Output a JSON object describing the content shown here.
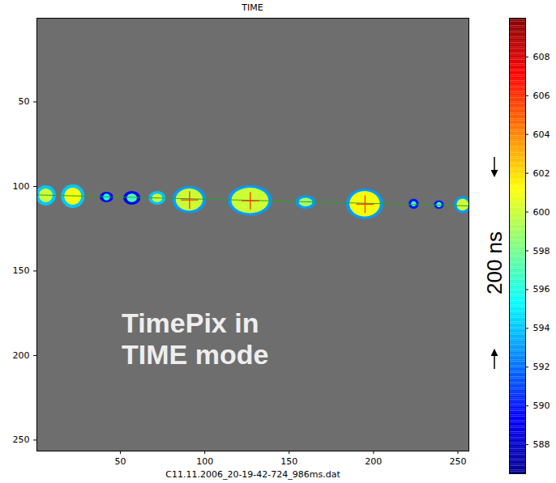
{
  "chart_data": {
    "type": "heatmap",
    "title": "TIME",
    "xlabel": "C11.11.2006_20-19-42-724_986ms.dat",
    "xlim": [
      0.5,
      256.5
    ],
    "ylim": [
      0.5,
      256.5
    ],
    "xticks": [
      50,
      100,
      150,
      200,
      250
    ],
    "yticks": [
      50,
      100,
      150,
      200,
      250
    ],
    "blobs": [
      {
        "x": 6,
        "y": 105.5,
        "rx": 6,
        "ry": 6,
        "value": 594
      },
      {
        "x": 6,
        "y": 105.5,
        "rx": 4,
        "ry": 4,
        "value": 600
      },
      {
        "x": 22,
        "y": 106,
        "rx": 7,
        "ry": 7,
        "value": 594
      },
      {
        "x": 22,
        "y": 106,
        "rx": 5,
        "ry": 5,
        "value": 601
      },
      {
        "x": 42,
        "y": 106.5,
        "rx": 4,
        "ry": 3,
        "value": 589
      },
      {
        "x": 42,
        "y": 106.5,
        "rx": 2,
        "ry": 2,
        "value": 596
      },
      {
        "x": 57,
        "y": 107,
        "rx": 5,
        "ry": 4,
        "value": 589
      },
      {
        "x": 57,
        "y": 107,
        "rx": 3,
        "ry": 2.5,
        "value": 597
      },
      {
        "x": 72,
        "y": 107,
        "rx": 5,
        "ry": 4,
        "value": 594
      },
      {
        "x": 72,
        "y": 107,
        "rx": 3,
        "ry": 2.5,
        "value": 600
      },
      {
        "x": 91,
        "y": 108,
        "rx": 10,
        "ry": 8,
        "value": 593
      },
      {
        "x": 91,
        "y": 108,
        "rx": 8,
        "ry": 6.5,
        "value": 600
      },
      {
        "x": 127,
        "y": 108.5,
        "rx": 13,
        "ry": 9,
        "value": 593
      },
      {
        "x": 127,
        "y": 108.5,
        "rx": 11,
        "ry": 7.5,
        "value": 600
      },
      {
        "x": 160,
        "y": 109.5,
        "rx": 6,
        "ry": 4,
        "value": 593
      },
      {
        "x": 160,
        "y": 109.5,
        "rx": 4,
        "ry": 2.5,
        "value": 599
      },
      {
        "x": 195,
        "y": 110.5,
        "rx": 11,
        "ry": 9,
        "value": 593
      },
      {
        "x": 195,
        "y": 110.5,
        "rx": 9,
        "ry": 7.5,
        "value": 601
      },
      {
        "x": 224,
        "y": 110.5,
        "rx": 3,
        "ry": 3,
        "value": 590
      },
      {
        "x": 224,
        "y": 110.5,
        "rx": 1.5,
        "ry": 1.5,
        "value": 597
      },
      {
        "x": 239,
        "y": 111,
        "rx": 3,
        "ry": 2.5,
        "value": 590
      },
      {
        "x": 239,
        "y": 111,
        "rx": 1.5,
        "ry": 1.5,
        "value": 597
      },
      {
        "x": 253,
        "y": 111,
        "rx": 5,
        "ry": 5,
        "value": 593
      },
      {
        "x": 253,
        "y": 111,
        "rx": 3.5,
        "ry": 3.5,
        "value": 600
      }
    ],
    "track": {
      "x": [
        0,
        256
      ],
      "y": [
        105,
        111.5
      ]
    },
    "markers": {
      "x": [
        91,
        127,
        195
      ],
      "y": [
        108,
        108.5,
        110.5
      ]
    },
    "colorbar": {
      "range": [
        586.5,
        610
      ],
      "ticks": [
        588,
        590,
        592,
        594,
        596,
        598,
        600,
        602,
        604,
        606,
        608
      ]
    },
    "annotations": [
      "TimePix in TIME mode",
      "200 ns"
    ]
  }
}
